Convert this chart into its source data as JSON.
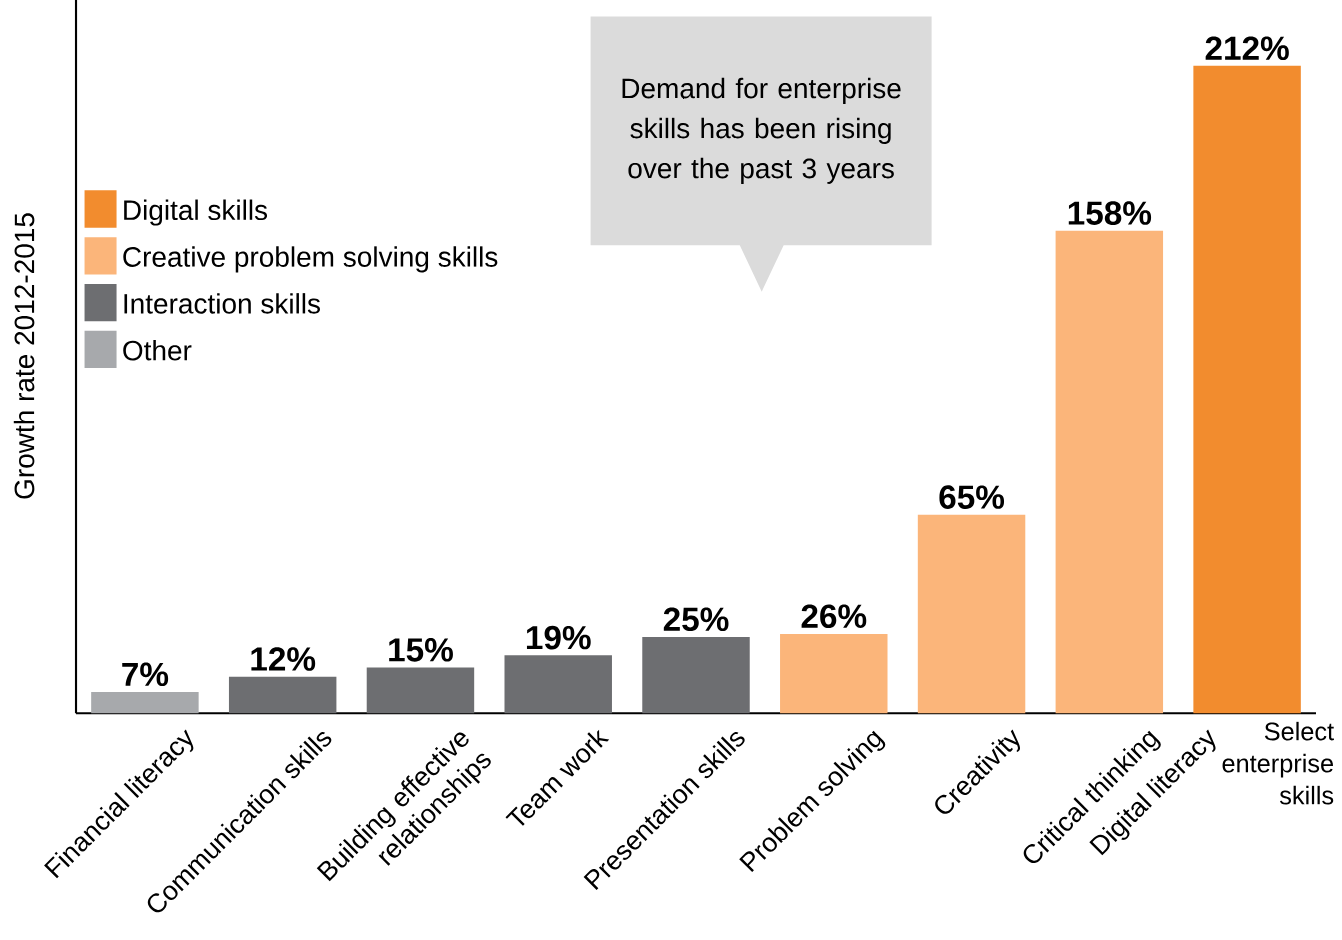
{
  "chart_data": {
    "type": "bar",
    "categories": [
      "Financial literacy",
      "Communication skills",
      "Building effective relationships",
      "Team work",
      "Presentation skills",
      "Problem solving",
      "Creativity",
      "Critical thinking",
      "Digital literacy"
    ],
    "series": [
      {
        "name": "Digital skills",
        "color": "#f28c2e",
        "values": [
          null,
          null,
          null,
          null,
          null,
          null,
          null,
          null,
          212
        ],
        "value_labels": [
          null,
          null,
          null,
          null,
          null,
          null,
          null,
          null,
          "212%"
        ]
      },
      {
        "name": "Creative problem solving skills",
        "color": "#fbb57a",
        "values": [
          null,
          null,
          null,
          null,
          null,
          26,
          65,
          158,
          null
        ],
        "value_labels": [
          null,
          null,
          null,
          null,
          null,
          "26%",
          "65%",
          "158%",
          null
        ]
      },
      {
        "name": "Interaction skills",
        "color": "#6d6e71",
        "values": [
          null,
          12,
          15,
          19,
          25,
          null,
          null,
          null,
          null
        ],
        "value_labels": [
          null,
          "12%",
          "15%",
          "19%",
          "25%",
          null,
          null,
          null,
          null
        ]
      },
      {
        "name": "Other",
        "color": "#a7a9ac",
        "values": [
          7,
          null,
          null,
          null,
          null,
          null,
          null,
          null,
          null
        ],
        "value_labels": [
          "7%",
          null,
          null,
          null,
          null,
          null,
          null,
          null,
          null
        ]
      }
    ],
    "ylim": [
      0,
      234
    ],
    "ylabel": "Growth rate 2012-2015",
    "xlabel": "Select enterprise skills",
    "legend": "top left",
    "annotations": [
      "Demand for enterprise skills has been rising over the past 3 years"
    ]
  }
}
